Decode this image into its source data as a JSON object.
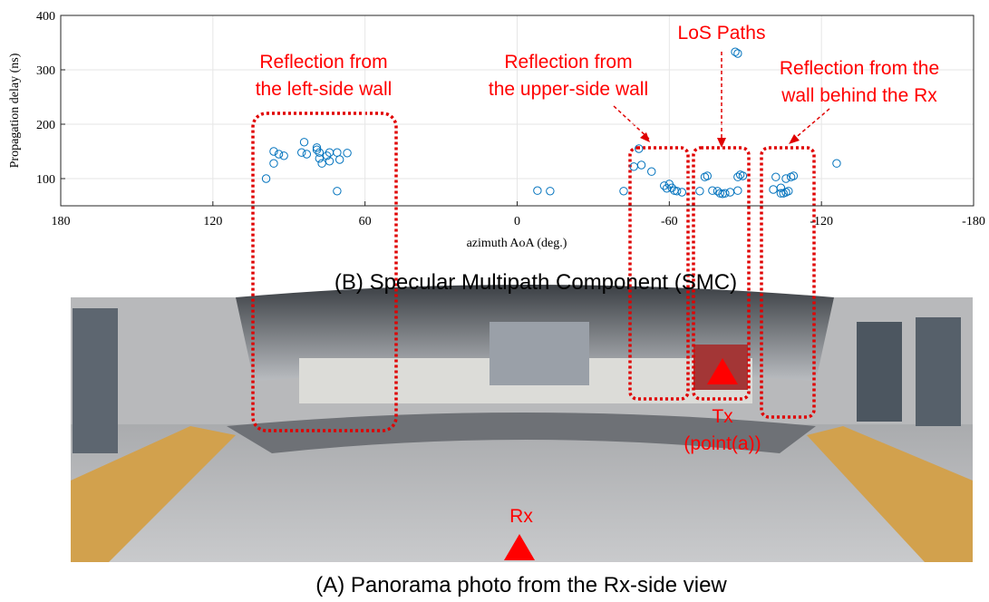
{
  "chart_data": {
    "type": "scatter",
    "title": "(B) Specular Multipath Component (SMC)",
    "x_label": "azimuth AoA (deg.)",
    "y_label": "Propagation delay (ns)",
    "xlim": [
      180,
      -180
    ],
    "xticks": [
      180,
      120,
      60,
      0,
      -60,
      -120,
      -180
    ],
    "ylim": [
      50,
      400
    ],
    "yticks": [
      100,
      200,
      300,
      400
    ],
    "grid": true,
    "color": "#0072bd",
    "x": [
      99,
      96,
      96,
      94,
      92,
      84,
      85,
      83,
      79,
      79,
      78,
      77,
      78,
      75,
      74,
      74,
      71,
      70,
      67,
      71,
      -8,
      -13,
      -42,
      -48,
      -46,
      -49,
      -53,
      -58,
      -59,
      -60,
      -61,
      -62,
      -63,
      -65,
      -72,
      -74,
      -75,
      -77,
      -80,
      -81,
      -82,
      -84,
      -79,
      -86,
      -87,
      -87,
      -88,
      -89,
      -87,
      -101,
      -102,
      -104,
      -104,
      -105,
      -106,
      -107,
      -108,
      -106,
      -109,
      -126
    ],
    "values": [
      100,
      150,
      128,
      145,
      142,
      167,
      148,
      145,
      157,
      153,
      137,
      128,
      148,
      142,
      132,
      148,
      148,
      135,
      147,
      77,
      78,
      77,
      77,
      155,
      122,
      125,
      113,
      87,
      82,
      90,
      83,
      78,
      77,
      75,
      77,
      103,
      105,
      78,
      73,
      72,
      73,
      75,
      77,
      333,
      330,
      103,
      107,
      105,
      78,
      80,
      103,
      73,
      83,
      73,
      100,
      77,
      103,
      75,
      105,
      128
    ],
    "annotations": [
      {
        "lines": [
          "Reflection from",
          "the left-side wall"
        ]
      },
      {
        "lines": [
          "Reflection from",
          "the upper-side wall"
        ]
      },
      {
        "lines": [
          "LoS Paths"
        ]
      },
      {
        "lines": [
          "Reflection from the",
          "wall behind the Rx"
        ]
      },
      {
        "lines": [
          "Tx",
          "(point(a))"
        ]
      },
      {
        "lines": [
          "Rx"
        ]
      }
    ]
  },
  "photo_caption": "(A) Panorama photo from the Rx-side view"
}
